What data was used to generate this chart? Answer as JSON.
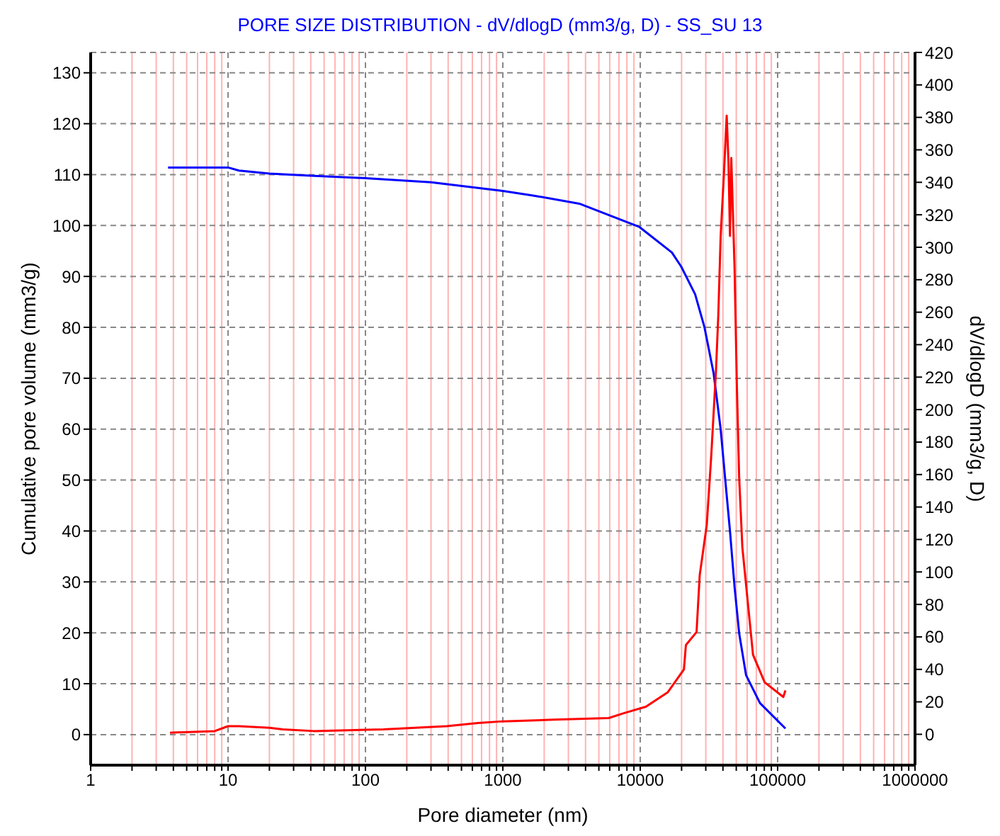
{
  "chart_data": {
    "type": "line",
    "title": "PORE SIZE DISTRIBUTION  - dV/dlogD (mm3/g, D) - SS_SU 13",
    "xlabel": "Pore diameter (nm)",
    "ylabel": "Cumulative pore volume (mm3/g)",
    "y2label": "dV/dlogD (mm3/g, D)",
    "log": "x",
    "grid": true,
    "legend": false,
    "marker": "none",
    "line_style": "solid",
    "xlim": [
      1,
      1000000
    ],
    "xticks": [
      1,
      {
        "value": 2,
        "label": null
      },
      {
        "value": 3,
        "label": null
      },
      {
        "value": 4,
        "label": null
      },
      {
        "value": 5,
        "label": null
      },
      {
        "value": 6,
        "label": null
      },
      {
        "value": 7,
        "label": null
      },
      {
        "value": 8,
        "label": null
      },
      {
        "value": 9,
        "label": null
      },
      10,
      {
        "value": 20,
        "label": null
      },
      {
        "value": 30,
        "label": null
      },
      {
        "value": 40,
        "label": null
      },
      {
        "value": 50,
        "label": null
      },
      {
        "value": 60,
        "label": null
      },
      {
        "value": 70,
        "label": null
      },
      {
        "value": 80,
        "label": null
      },
      {
        "value": 90,
        "label": null
      },
      100,
      {
        "value": 200,
        "label": null
      },
      {
        "value": 300,
        "label": null
      },
      {
        "value": 400,
        "label": null
      },
      {
        "value": 500,
        "label": null
      },
      {
        "value": 600,
        "label": null
      },
      {
        "value": 700,
        "label": null
      },
      {
        "value": 800,
        "label": null
      },
      {
        "value": 900,
        "label": null
      },
      1000,
      {
        "value": 2000,
        "label": null
      },
      {
        "value": 3000,
        "label": null
      },
      {
        "value": 4000,
        "label": null
      },
      {
        "value": 5000,
        "label": null
      },
      {
        "value": 6000,
        "label": null
      },
      {
        "value": 7000,
        "label": null
      },
      {
        "value": 8000,
        "label": null
      },
      {
        "value": 9000,
        "label": null
      },
      10000,
      {
        "value": 20000,
        "label": null
      },
      {
        "value": 30000,
        "label": null
      },
      {
        "value": 40000,
        "label": null
      },
      {
        "value": 50000,
        "label": null
      },
      {
        "value": 60000,
        "label": null
      },
      {
        "value": 70000,
        "label": null
      },
      {
        "value": 80000,
        "label": null
      },
      {
        "value": 90000,
        "label": null
      },
      100000,
      {
        "value": 200000,
        "label": null
      },
      {
        "value": 300000,
        "label": null
      },
      {
        "value": 400000,
        "label": null
      },
      {
        "value": 500000,
        "label": null
      },
      {
        "value": 600000,
        "label": null
      },
      {
        "value": 700000,
        "label": null
      },
      {
        "value": 800000,
        "label": null
      },
      {
        "value": 900000,
        "label": null
      },
      1000000
    ],
    "ylim": [
      -6,
      134
    ],
    "yticks": [
      0,
      10,
      20,
      30,
      40,
      50,
      60,
      70,
      80,
      90,
      100,
      110,
      120,
      130
    ],
    "y2lim": [
      -19,
      420
    ],
    "y2ticks": [
      0,
      20,
      40,
      60,
      80,
      100,
      120,
      140,
      160,
      180,
      200,
      220,
      240,
      260,
      280,
      300,
      320,
      340,
      360,
      380,
      400,
      420
    ],
    "series": [
      {
        "color": "#0000ff",
        "x": [
          3.66,
          10,
          12,
          20,
          40,
          100,
          300,
          1000,
          1655,
          3600,
          9880,
          17000,
          19900,
          25100,
          29300,
          34200,
          38500,
          41600,
          45000,
          48600,
          52500,
          58900,
          74400,
          114000
        ],
        "values": [
          111.4,
          111.4,
          110.8,
          110.2,
          109.8,
          109.3,
          108.5,
          106.8,
          105.9,
          104.3,
          99.7,
          94.7,
          91.9,
          86.5,
          80.1,
          71.0,
          60.0,
          50.0,
          40.0,
          29.0,
          19.9,
          11.7,
          6.2,
          1.2
        ]
      },
      {
        "color": "#ff0000",
        "axis": "y2",
        "x": [
          3.78,
          8,
          10,
          12,
          20,
          25,
          42,
          135,
          390,
          660,
          1000,
          2370,
          5900,
          7600,
          11000,
          15900,
          20800,
          21500,
          25700,
          27100,
          30500,
          32900,
          35600,
          37000,
          38500,
          40600,
          42600,
          43900,
          45000,
          46000,
          48600,
          50500,
          52500,
          55400,
          61200,
          66200,
          80500,
          110000,
          114000
        ],
        "values": [
          1,
          2,
          5,
          5,
          4,
          3,
          2,
          3,
          5,
          7,
          8,
          9,
          10,
          13,
          17,
          26,
          40,
          55,
          63,
          98,
          129,
          172,
          224,
          258,
          307,
          344,
          381,
          352,
          307,
          355,
          287,
          215,
          158,
          115,
          78,
          49,
          32,
          23,
          27
        ]
      }
    ]
  }
}
